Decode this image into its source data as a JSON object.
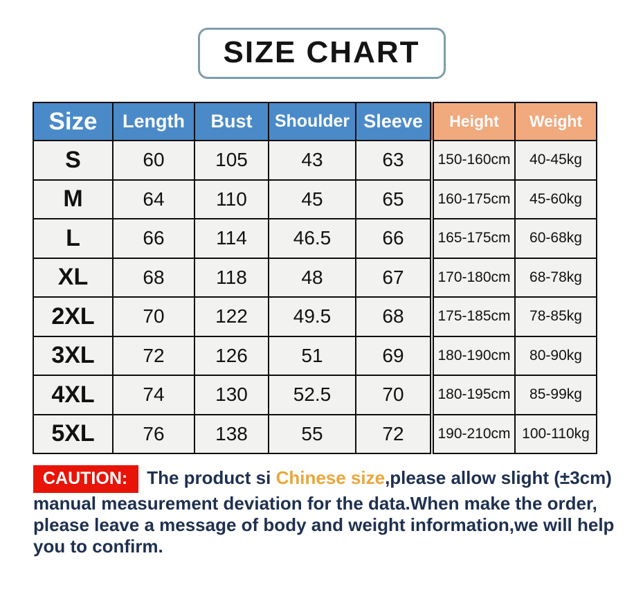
{
  "title": {
    "text": "SIZE CHART"
  },
  "table": {
    "headers": [
      {
        "key": "size",
        "label": "Size"
      },
      {
        "key": "length",
        "label": "Length"
      },
      {
        "key": "bust",
        "label": "Bust"
      },
      {
        "key": "shoulder",
        "label": "Shoulder"
      },
      {
        "key": "sleeve",
        "label": "Sleeve"
      },
      {
        "key": "height",
        "label": "Height"
      },
      {
        "key": "weight",
        "label": "Weight"
      }
    ],
    "rows": [
      {
        "size": "S",
        "length": "60",
        "bust": "105",
        "shoulder": "43",
        "sleeve": "63",
        "height": "150-160cm",
        "weight": "40-45kg"
      },
      {
        "size": "M",
        "length": "64",
        "bust": "110",
        "shoulder": "45",
        "sleeve": "65",
        "height": "160-175cm",
        "weight": "45-60kg"
      },
      {
        "size": "L",
        "length": "66",
        "bust": "114",
        "shoulder": "46.5",
        "sleeve": "66",
        "height": "165-175cm",
        "weight": "60-68kg"
      },
      {
        "size": "XL",
        "length": "68",
        "bust": "118",
        "shoulder": "48",
        "sleeve": "67",
        "height": "170-180cm",
        "weight": "68-78kg"
      },
      {
        "size": "2XL",
        "length": "70",
        "bust": "122",
        "shoulder": "49.5",
        "sleeve": "68",
        "height": "175-185cm",
        "weight": "78-85kg"
      },
      {
        "size": "3XL",
        "length": "72",
        "bust": "126",
        "shoulder": "51",
        "sleeve": "69",
        "height": "180-190cm",
        "weight": "80-90kg"
      },
      {
        "size": "4XL",
        "length": "74",
        "bust": "130",
        "shoulder": "52.5",
        "sleeve": "70",
        "height": "180-195cm",
        "weight": "85-99kg"
      },
      {
        "size": "5XL",
        "length": "76",
        "bust": "138",
        "shoulder": "55",
        "sleeve": "72",
        "height": "190-210cm",
        "weight": "100-110kg"
      }
    ]
  },
  "caution": {
    "label": "CAUTION:",
    "text_before": "The product si ",
    "highlight": "Chinese size",
    "text_after": ",please allow slight (±3cm) manual measurement deviation for the data.When make the order, please leave a message of body and weight information,we will help you to confirm."
  },
  "colors": {
    "header_blue": "#4a8ac8",
    "header_peach": "#f1a97e",
    "cell_background": "#f2f2f0",
    "table_border": "#0d0d0d",
    "caution_badge_red": "#e91408",
    "caution_text_navy": "#1e3050",
    "highlight_orange": "#eaa63c",
    "title_border": "#7e9dab"
  }
}
